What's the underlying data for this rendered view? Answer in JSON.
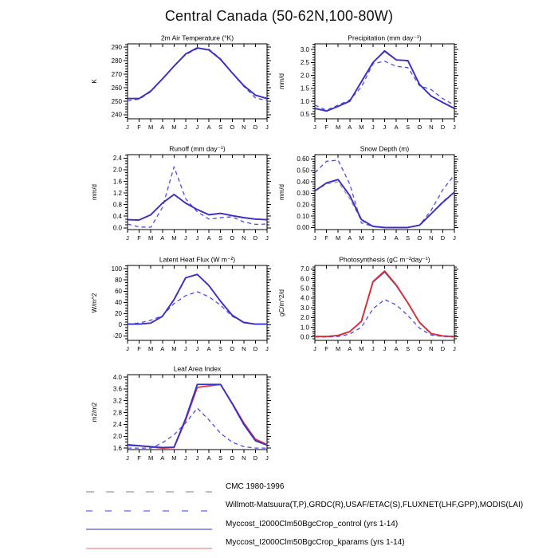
{
  "page": {
    "title": "Central Canada (50-62N,100-80W)"
  },
  "series_styles": {
    "cmc": {
      "color": "#9e9e9e",
      "dash": "5,4",
      "width": 1.2
    },
    "obs": {
      "color": "#4a4aee",
      "dash": "5,4",
      "width": 1.3
    },
    "kparams": {
      "color": "#e03030",
      "dash": "",
      "width": 1.8
    },
    "control": {
      "color": "#3232cd",
      "dash": "",
      "width": 1.8
    }
  },
  "legend": {
    "items": [
      {
        "label": "CMC 1980-1996",
        "color": "#aaaaaa",
        "dasharray": "10,15",
        "width": 1.4
      },
      {
        "label": "Willmott-Matsuura(T,P),GRDC(R),USAF/ETAC(S),FLUXNET(LHF,GPP),MODIS(LAI)",
        "color": "#7a7af5",
        "dasharray": "8,16",
        "width": 1.4
      },
      {
        "label": "Myccost_I2000Clm50BgcCrop_control (yrs 1-14)",
        "color": "#5656d6",
        "dasharray": "",
        "width": 1.2
      },
      {
        "label": "Myccost_I2000Clm50BgcCrop_kparams (yrs 1-14)",
        "color": "#f29b9b",
        "dasharray": "",
        "width": 1.5
      }
    ]
  },
  "chart_data": [
    {
      "type": "line",
      "title": "2m Air Temperature (°K)",
      "ylabel": "K",
      "categories": [
        "J",
        "F",
        "M",
        "A",
        "M",
        "J",
        "J",
        "A",
        "S",
        "O",
        "N",
        "D",
        "J"
      ],
      "ylim": [
        237,
        292.5
      ],
      "ytick_vals": [
        240,
        250,
        260,
        270,
        280,
        290
      ],
      "ytick_labels": [
        "240",
        "250",
        "260",
        "270",
        "280",
        "290"
      ],
      "yminor": 5,
      "legend_position": "none",
      "grid": false,
      "series": [
        {
          "name": "obs (Willmott-Matsuura)",
          "style": "obs",
          "values": [
            250.5,
            251.5,
            257.0,
            266.5,
            276.0,
            284.5,
            289.0,
            288.5,
            281.5,
            271.0,
            261.0,
            252.5,
            250.5
          ]
        },
        {
          "name": "kparams",
          "style": "kparams",
          "values": [
            252.0,
            252.0,
            257.5,
            266.5,
            276.0,
            285.0,
            289.5,
            288.0,
            281.0,
            271.0,
            261.5,
            254.5,
            252.0
          ]
        },
        {
          "name": "control",
          "style": "control",
          "values": [
            252.0,
            252.0,
            257.5,
            266.5,
            276.0,
            285.0,
            289.5,
            288.0,
            281.0,
            271.0,
            261.5,
            254.5,
            252.0
          ]
        }
      ]
    },
    {
      "type": "line",
      "title": "Precipitation (mm day⁻¹)",
      "ylabel": "mm/d",
      "categories": [
        "J",
        "F",
        "M",
        "A",
        "M",
        "J",
        "J",
        "A",
        "S",
        "O",
        "N",
        "D",
        "J"
      ],
      "ylim": [
        0.32,
        3.22
      ],
      "ytick_vals": [
        0.5,
        1.0,
        1.5,
        2.0,
        2.5,
        3.0
      ],
      "ytick_labels": [
        "0.5",
        "1.0",
        "1.5",
        "2.0",
        "2.5",
        "3.0"
      ],
      "yminor": 5,
      "legend_position": "none",
      "grid": false,
      "series": [
        {
          "name": "obs (Willmott-Matsuura)",
          "style": "obs",
          "values": [
            0.85,
            0.65,
            0.85,
            1.05,
            1.55,
            2.45,
            2.55,
            2.35,
            2.3,
            1.6,
            1.45,
            1.1,
            0.85
          ]
        },
        {
          "name": "kparams",
          "style": "kparams",
          "values": [
            0.72,
            0.62,
            0.8,
            1.0,
            1.75,
            2.5,
            2.93,
            2.6,
            2.57,
            1.65,
            1.2,
            0.95,
            0.72
          ]
        },
        {
          "name": "control",
          "style": "control",
          "values": [
            0.72,
            0.62,
            0.8,
            1.0,
            1.75,
            2.5,
            2.95,
            2.6,
            2.57,
            1.65,
            1.2,
            0.95,
            0.72
          ]
        }
      ]
    },
    {
      "type": "line",
      "title": "Runoff (mm day⁻¹)",
      "ylabel": "mm/d",
      "categories": [
        "J",
        "F",
        "M",
        "A",
        "M",
        "J",
        "J",
        "A",
        "S",
        "O",
        "N",
        "D",
        "J"
      ],
      "ylim": [
        -0.06,
        2.52
      ],
      "ytick_vals": [
        0.0,
        0.4,
        0.8,
        1.2,
        1.6,
        2.0,
        2.4
      ],
      "ytick_labels": [
        "0.0",
        "0.4",
        "0.8",
        "1.2",
        "1.6",
        "2.0",
        "2.4"
      ],
      "yminor": 4,
      "legend_position": "none",
      "grid": false,
      "series": [
        {
          "name": "obs (GRDC)",
          "style": "obs",
          "values": [
            0.13,
            0.03,
            0.02,
            0.7,
            2.1,
            1.0,
            0.55,
            0.3,
            0.35,
            0.38,
            0.2,
            0.12,
            0.13
          ]
        },
        {
          "name": "kparams",
          "style": "kparams",
          "values": [
            0.28,
            0.27,
            0.45,
            0.85,
            1.15,
            0.85,
            0.63,
            0.45,
            0.5,
            0.42,
            0.35,
            0.3,
            0.28
          ]
        },
        {
          "name": "control",
          "style": "control",
          "values": [
            0.28,
            0.27,
            0.45,
            0.85,
            1.15,
            0.85,
            0.63,
            0.45,
            0.5,
            0.42,
            0.35,
            0.3,
            0.28
          ]
        }
      ]
    },
    {
      "type": "line",
      "title": "Snow Depth (m)",
      "ylabel": "mm/d",
      "categories": [
        "J",
        "F",
        "M",
        "A",
        "M",
        "J",
        "J",
        "A",
        "S",
        "O",
        "N",
        "D",
        "J"
      ],
      "ylim": [
        -0.018,
        0.638
      ],
      "ytick_vals": [
        0.0,
        0.1,
        0.2,
        0.3,
        0.4,
        0.5,
        0.6
      ],
      "ytick_labels": [
        "0.00",
        "0.10",
        "0.20",
        "0.30",
        "0.40",
        "0.50",
        "0.60"
      ],
      "yminor": 5,
      "legend_position": "none",
      "grid": false,
      "series": [
        {
          "name": "CMC 1980-1996",
          "style": "cmc",
          "values": [
            0.32,
            0.38,
            0.4,
            0.25,
            0.06,
            0.01,
            0.0,
            0.0,
            0.0,
            0.02,
            0.12,
            0.23,
            0.31
          ]
        },
        {
          "name": "obs (USAF/ETAC)",
          "style": "obs",
          "values": [
            0.48,
            0.58,
            0.59,
            0.38,
            0.04,
            0.01,
            0.0,
            0.0,
            0.0,
            0.02,
            0.15,
            0.33,
            0.46
          ]
        },
        {
          "name": "kparams",
          "style": "kparams",
          "values": [
            0.32,
            0.39,
            0.42,
            0.28,
            0.07,
            0.01,
            0.0,
            0.0,
            0.0,
            0.02,
            0.12,
            0.22,
            0.31
          ]
        },
        {
          "name": "control",
          "style": "control",
          "values": [
            0.32,
            0.39,
            0.42,
            0.28,
            0.07,
            0.01,
            0.0,
            0.0,
            0.0,
            0.02,
            0.12,
            0.22,
            0.31
          ]
        }
      ]
    },
    {
      "type": "line",
      "title": "Latent Heat Flux (W m⁻²)",
      "ylabel": "W/m^2",
      "categories": [
        "J",
        "F",
        "M",
        "A",
        "M",
        "J",
        "J",
        "A",
        "S",
        "O",
        "N",
        "D",
        "J"
      ],
      "ylim": [
        -28,
        106
      ],
      "ytick_vals": [
        -20,
        0,
        20,
        40,
        60,
        80,
        100
      ],
      "ytick_labels": [
        "-20",
        "0",
        "20",
        "40",
        "60",
        "80",
        "100"
      ],
      "yminor": 4,
      "legend_position": "none",
      "grid": false,
      "series": [
        {
          "name": "obs (FLUXNET)",
          "style": "obs",
          "values": [
            1,
            3,
            8,
            16,
            38,
            52,
            59,
            50,
            35,
            15,
            5,
            1,
            1
          ]
        },
        {
          "name": "kparams",
          "style": "kparams",
          "values": [
            1,
            1,
            3,
            15,
            45,
            84,
            90,
            70,
            42,
            17,
            4,
            1,
            1
          ]
        },
        {
          "name": "control",
          "style": "control",
          "values": [
            1,
            1,
            3,
            15,
            45,
            84,
            90,
            70,
            42,
            17,
            4,
            1,
            1
          ]
        }
      ]
    },
    {
      "type": "line",
      "title": "Photosynthesis (gC m⁻²day⁻¹)",
      "ylabel": "gC/m^2/d",
      "categories": [
        "J",
        "F",
        "M",
        "A",
        "M",
        "J",
        "J",
        "A",
        "S",
        "O",
        "N",
        "D",
        "J"
      ],
      "ylim": [
        -0.35,
        7.35
      ],
      "ytick_vals": [
        0.0,
        1.0,
        2.0,
        3.0,
        4.0,
        5.0,
        6.0,
        7.0
      ],
      "ytick_labels": [
        "0.0",
        "1.0",
        "2.0",
        "3.0",
        "4.0",
        "5.0",
        "6.0",
        "7.0"
      ],
      "yminor": 5,
      "legend_position": "none",
      "grid": false,
      "series": [
        {
          "name": "obs (FLUXNET GPP)",
          "style": "obs",
          "values": [
            0.0,
            0.0,
            0.05,
            0.3,
            1.0,
            2.9,
            3.85,
            3.3,
            2.2,
            0.9,
            0.2,
            0.05,
            0.0
          ]
        },
        {
          "name": "control",
          "style": "control",
          "values": [
            0.05,
            0.05,
            0.15,
            0.55,
            1.6,
            5.65,
            6.7,
            5.3,
            3.5,
            1.5,
            0.35,
            0.1,
            0.05
          ]
        },
        {
          "name": "kparams",
          "style": "kparams",
          "values": [
            0.05,
            0.05,
            0.15,
            0.55,
            1.6,
            5.7,
            6.78,
            5.35,
            3.5,
            1.5,
            0.35,
            0.1,
            0.05
          ]
        }
      ]
    },
    {
      "type": "line",
      "title": "Leaf Area Index",
      "ylabel": "m2/m2",
      "categories": [
        "J",
        "F",
        "M",
        "A",
        "M",
        "J",
        "J",
        "A",
        "S",
        "O",
        "N",
        "D",
        "J"
      ],
      "ylim": [
        1.55,
        4.08
      ],
      "ytick_vals": [
        1.6,
        2.0,
        2.4,
        2.8,
        3.2,
        3.6,
        4.0
      ],
      "ytick_labels": [
        "1.6",
        "2.0",
        "2.4",
        "2.8",
        "3.2",
        "3.6",
        "4.0"
      ],
      "yminor": 4,
      "legend_position": "none",
      "grid": false,
      "series": [
        {
          "name": "obs (MODIS LAI)",
          "style": "obs",
          "values": [
            1.6,
            1.6,
            1.6,
            1.78,
            2.05,
            2.45,
            2.95,
            2.55,
            2.1,
            1.8,
            1.65,
            1.6,
            1.6
          ]
        },
        {
          "name": "kparams",
          "style": "kparams",
          "values": [
            1.72,
            1.68,
            1.64,
            1.6,
            1.62,
            2.55,
            3.65,
            3.7,
            3.75,
            3.12,
            2.45,
            1.9,
            1.72
          ]
        },
        {
          "name": "control",
          "style": "control",
          "values": [
            1.7,
            1.68,
            1.65,
            1.62,
            1.63,
            2.6,
            3.75,
            3.75,
            3.75,
            3.1,
            2.4,
            1.85,
            1.7
          ]
        }
      ]
    }
  ]
}
